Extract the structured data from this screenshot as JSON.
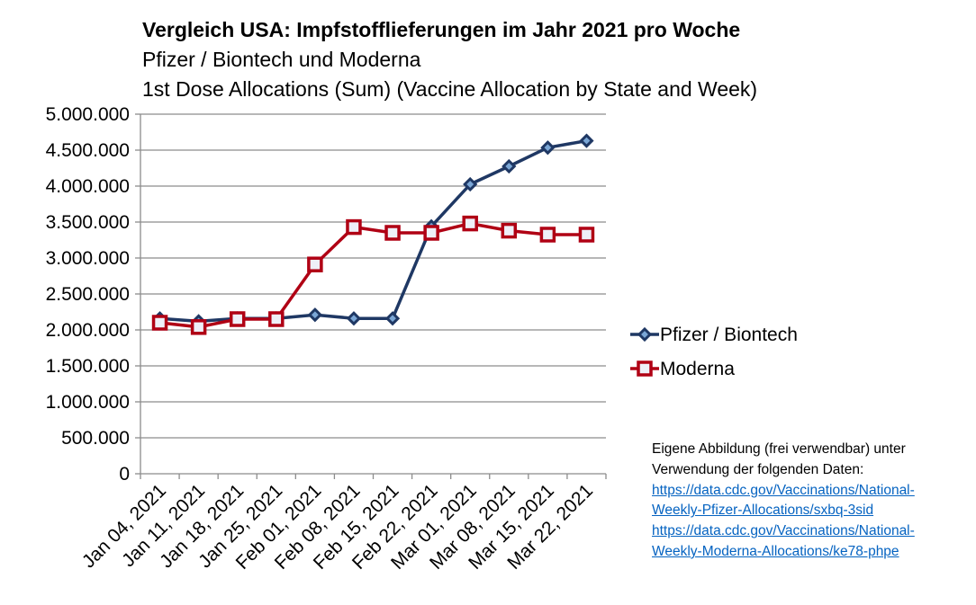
{
  "chart_data": {
    "type": "line",
    "title": "Vergleich USA: Impfstofflieferungen im Jahr 2021 pro Woche",
    "subtitle_1": "Pfizer / Biontech und Moderna",
    "subtitle_2": "1st Dose Allocations (Sum) (Vaccine Allocation by State and Week)",
    "xlabel": "",
    "ylabel": "",
    "categories": [
      "Jan 04, 2021",
      "Jan 11, 2021",
      "Jan 18, 2021",
      "Jan 25, 2021",
      "Feb 01, 2021",
      "Feb 08, 2021",
      "Feb 15, 2021",
      "Feb 22, 2021",
      "Mar 01, 2021",
      "Mar 08, 2021",
      "Mar 15, 2021",
      "Mar 22, 2021"
    ],
    "ylim": [
      0,
      5000000
    ],
    "yticks": [
      "0",
      "500.000",
      "1.000.000",
      "1.500.000",
      "2.000.000",
      "2.500.000",
      "3.000.000",
      "3.500.000",
      "4.000.000",
      "4.500.000",
      "5.000.000"
    ],
    "grid": true,
    "legend_position": "right",
    "series": [
      {
        "name": "Pfizer / Biontech",
        "color": "#1f3864",
        "marker": "diamond",
        "values": [
          2160000,
          2120000,
          2160000,
          2160000,
          2210000,
          2160000,
          2160000,
          3440000,
          4025000,
          4275000,
          4535000,
          4630000
        ]
      },
      {
        "name": "Moderna",
        "color": "#b00014",
        "marker": "square",
        "values": [
          2100000,
          2040000,
          2150000,
          2150000,
          2910000,
          3430000,
          3350000,
          3350000,
          3480000,
          3380000,
          3325000,
          3325000
        ]
      }
    ]
  },
  "footnote": {
    "line1": "Eigene Abbildung (frei verwendbar) unter",
    "line2": "Verwendung der folgenden Daten:",
    "link1_a": "https://data.cdc.gov/Vaccinations/National-",
    "link1_b": "Weekly-Pfizer-Allocations/sxbq-3sid",
    "link2_a": "https://data.cdc.gov/Vaccinations/National-",
    "link2_b": "Weekly-Moderna-Allocations/ke78-phpe"
  }
}
